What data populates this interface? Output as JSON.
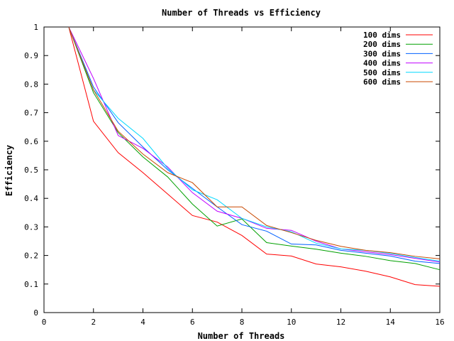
{
  "chart_data": {
    "type": "line",
    "title": "Number of Threads vs Efficiency",
    "xlabel": "Number of Threads",
    "ylabel": "Efficiency",
    "xlim": [
      0,
      16
    ],
    "ylim": [
      0,
      1
    ],
    "xticks": [
      0,
      2,
      4,
      6,
      8,
      10,
      12,
      14,
      16
    ],
    "yticks": [
      0,
      0.1,
      0.2,
      0.3,
      0.4,
      0.5,
      0.6,
      0.7,
      0.8,
      0.9,
      1
    ],
    "grid": false,
    "legend_position": "top-right",
    "x": [
      1,
      2,
      3,
      4,
      5,
      6,
      7,
      8,
      9,
      10,
      11,
      12,
      13,
      14,
      15,
      16
    ],
    "series": [
      {
        "name": "100 dims",
        "color": "#ff0000",
        "values": [
          1.0,
          0.67,
          0.56,
          0.49,
          0.415,
          0.34,
          0.317,
          0.27,
          0.205,
          0.198,
          0.17,
          0.16,
          0.145,
          0.125,
          0.098,
          0.092
        ]
      },
      {
        "name": "200 dims",
        "color": "#00a000",
        "values": [
          1.0,
          0.77,
          0.63,
          0.545,
          0.475,
          0.38,
          0.303,
          0.328,
          0.245,
          0.233,
          0.222,
          0.208,
          0.197,
          0.182,
          0.172,
          0.15
        ]
      },
      {
        "name": "300 dims",
        "color": "#0060ff",
        "values": [
          1.0,
          0.79,
          0.665,
          0.58,
          0.5,
          0.435,
          0.37,
          0.308,
          0.285,
          0.24,
          0.237,
          0.218,
          0.208,
          0.198,
          0.18,
          0.172
        ]
      },
      {
        "name": "400 dims",
        "color": "#c000ff",
        "values": [
          1.0,
          0.82,
          0.62,
          0.575,
          0.51,
          0.42,
          0.355,
          0.33,
          0.295,
          0.288,
          0.25,
          0.223,
          0.213,
          0.203,
          0.19,
          0.177
        ]
      },
      {
        "name": "500 dims",
        "color": "#00d8ff",
        "values": [
          1.0,
          0.78,
          0.68,
          0.61,
          0.505,
          0.43,
          0.395,
          0.33,
          0.3,
          0.283,
          0.243,
          0.223,
          0.218,
          0.207,
          0.193,
          0.18
        ]
      },
      {
        "name": "600 dims",
        "color": "#c84800",
        "values": [
          1.0,
          0.78,
          0.635,
          0.555,
          0.49,
          0.455,
          0.37,
          0.37,
          0.305,
          0.28,
          0.253,
          0.232,
          0.218,
          0.21,
          0.197,
          0.188
        ]
      }
    ]
  }
}
